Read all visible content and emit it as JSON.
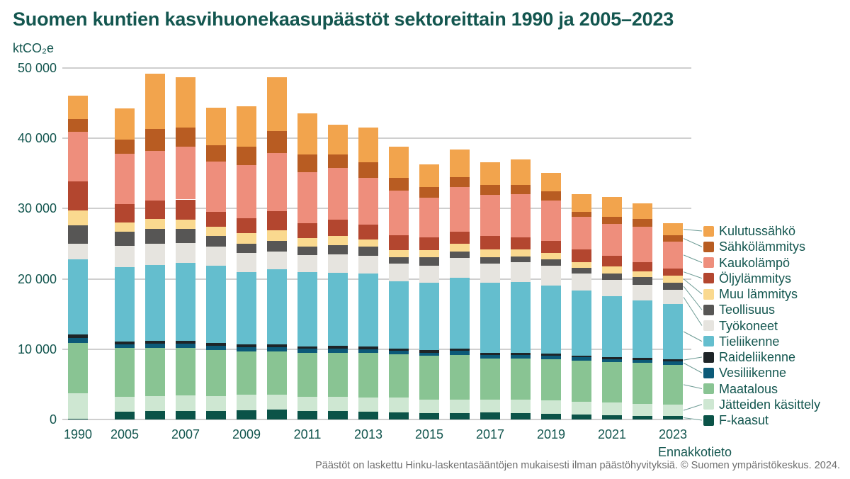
{
  "title": "Suomen kuntien kasvihuonekaasupäästöt sektoreittain 1990 ja 2005–2023",
  "footer": {
    "text": "Päästöt on laskettu Hinku-laskentasääntöjen mukaisesti ilman päästöhyvityksiä. © Suomen ympäristökeskus. 2024."
  },
  "y_axis": {
    "unit": "ktCO₂e",
    "ticks": [
      {
        "value": 0,
        "label": "0"
      },
      {
        "value": 10000,
        "label": "10 000"
      },
      {
        "value": 20000,
        "label": "20 000"
      },
      {
        "value": 30000,
        "label": "30 000"
      },
      {
        "value": 40000,
        "label": "40 000"
      },
      {
        "value": 50000,
        "label": "50 000"
      }
    ]
  },
  "x_axis": {
    "tick_labels": [
      {
        "index": 0,
        "label": "1990"
      },
      {
        "index": 1,
        "label": "2005"
      },
      {
        "index": 3,
        "label": "2007"
      },
      {
        "index": 5,
        "label": "2009"
      },
      {
        "index": 7,
        "label": "2011"
      },
      {
        "index": 9,
        "label": "2013"
      },
      {
        "index": 11,
        "label": "2015"
      },
      {
        "index": 13,
        "label": "2017"
      },
      {
        "index": 15,
        "label": "2019"
      },
      {
        "index": 17,
        "label": "2021"
      },
      {
        "index": 19,
        "label": "2023"
      }
    ],
    "note": {
      "text": "Ennakkotieto",
      "index": 19
    }
  },
  "colors": {
    "text_teal": "#13564F",
    "gridline": "#cfcfcf",
    "leader_line": "#6D9B94",
    "footer_text": "#6e6e6e"
  },
  "chart_data": {
    "type": "bar",
    "stacked": true,
    "title": "Suomen kuntien kasvihuonekaasupäästöt sektoreittain 1990 ja 2005–2023",
    "ylabel": "ktCO₂e",
    "ylim": [
      0,
      50000
    ],
    "grid": true,
    "legend_position": "right",
    "categories": [
      "1990",
      "2005",
      "2006",
      "2007",
      "2008",
      "2009",
      "2010",
      "2011",
      "2012",
      "2013",
      "2014",
      "2015",
      "2016",
      "2017",
      "2018",
      "2019",
      "2020",
      "2021",
      "2022",
      "2023"
    ],
    "series": [
      {
        "name": "Kulutussähkö",
        "slug": "kulutussahko",
        "color": "#F2A44D",
        "values": [
          3400,
          4500,
          7900,
          7200,
          5400,
          5800,
          7700,
          5800,
          4200,
          4900,
          4400,
          3200,
          3900,
          3200,
          3600,
          2600,
          2600,
          2900,
          2200,
          1700
        ]
      },
      {
        "name": "Sähkölämmitys",
        "slug": "sahkolammitys",
        "color": "#B85C22",
        "values": [
          1800,
          2000,
          3100,
          2700,
          2300,
          2600,
          3100,
          2500,
          1900,
          2200,
          1800,
          1500,
          1400,
          1400,
          1300,
          1400,
          700,
          1000,
          1100,
          900
        ]
      },
      {
        "name": "Kaukolämpö",
        "slug": "kaukolampo",
        "color": "#EE8E7C",
        "values": [
          7000,
          7200,
          7100,
          7500,
          7200,
          7600,
          8300,
          7300,
          7400,
          6700,
          6400,
          5700,
          6400,
          5900,
          6200,
          5700,
          4600,
          4500,
          5000,
          3800
        ]
      },
      {
        "name": "Öljylämmitys",
        "slug": "oljylammitys",
        "color": "#B3462F",
        "values": [
          4200,
          2600,
          2600,
          2900,
          2100,
          2100,
          2700,
          2100,
          2300,
          2100,
          2100,
          1800,
          1700,
          1900,
          1700,
          1700,
          1800,
          1500,
          1300,
          1000
        ]
      },
      {
        "name": "Muu lämmitys",
        "slug": "muu-lammitys",
        "color": "#FAD98F",
        "values": [
          2100,
          1300,
          1400,
          1300,
          1300,
          1500,
          1500,
          1200,
          1300,
          1000,
          1000,
          1000,
          1100,
          1100,
          1000,
          900,
          800,
          1000,
          800,
          1000
        ]
      },
      {
        "name": "Teollisuus",
        "slug": "teollisuus",
        "color": "#575655",
        "values": [
          2600,
          2000,
          2100,
          2000,
          1500,
          1300,
          1500,
          1200,
          1300,
          1300,
          900,
          1200,
          900,
          900,
          800,
          900,
          800,
          900,
          1100,
          1100
        ]
      },
      {
        "name": "Työkoneet",
        "slug": "tyokoneet",
        "color": "#E6E4DF",
        "values": [
          2200,
          3000,
          3000,
          2800,
          2700,
          2700,
          2500,
          2400,
          2600,
          2500,
          2500,
          2400,
          2800,
          2700,
          2800,
          2800,
          2500,
          2400,
          2300,
          2000
        ]
      },
      {
        "name": "Tieliikenne",
        "slug": "tieliikenne",
        "color": "#64BECE",
        "values": [
          10700,
          10600,
          10800,
          11100,
          11000,
          10300,
          10700,
          10600,
          10400,
          10400,
          9600,
          9600,
          10100,
          10000,
          10100,
          9700,
          9200,
          8600,
          8100,
          7800
        ]
      },
      {
        "name": "Raideliikenne",
        "slug": "raideliikenne",
        "color": "#1E2427",
        "values": [
          500,
          400,
          400,
          400,
          400,
          400,
          400,
          300,
          400,
          400,
          300,
          400,
          300,
          300,
          300,
          300,
          200,
          300,
          300,
          300
        ]
      },
      {
        "name": "Vesiliikenne",
        "slug": "vesiliikenne",
        "color": "#0C5A78",
        "values": [
          700,
          500,
          600,
          600,
          600,
          600,
          600,
          600,
          600,
          500,
          500,
          400,
          600,
          500,
          500,
          500,
          500,
          400,
          400,
          500
        ]
      },
      {
        "name": "Maatalous",
        "slug": "maatalous",
        "color": "#89C493",
        "values": [
          7200,
          7000,
          6900,
          6800,
          6600,
          6200,
          6200,
          6300,
          6300,
          6400,
          6200,
          6300,
          6400,
          5900,
          5900,
          5900,
          5900,
          5800,
          5900,
          5700
        ]
      },
      {
        "name": "Jätteiden käsittely",
        "slug": "jatteiden-kasittely",
        "color": "#CEE7D2",
        "values": [
          3600,
          2100,
          2100,
          2200,
          2100,
          2200,
          2100,
          2000,
          2000,
          2000,
          2100,
          1900,
          1900,
          1800,
          1900,
          1900,
          1800,
          1800,
          1700,
          1600
        ]
      },
      {
        "name": "F-kaasut",
        "slug": "f-kaasut",
        "color": "#0B5348",
        "values": [
          100,
          1100,
          1200,
          1200,
          1200,
          1300,
          1400,
          1200,
          1200,
          1100,
          1000,
          900,
          900,
          1000,
          900,
          800,
          700,
          600,
          500,
          500
        ]
      }
    ]
  }
}
